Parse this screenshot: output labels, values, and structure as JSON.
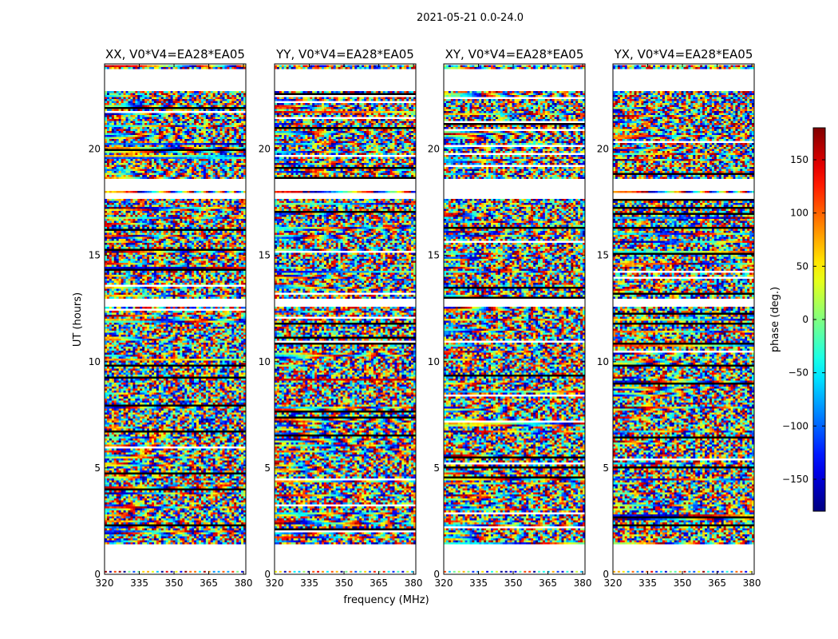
{
  "figure": {
    "suptitle": "2021-05-21 0.0-24.0",
    "xlabel": "frequency (MHz)",
    "ylabel": "UT (hours)"
  },
  "chart_data": {
    "type": "heatmap",
    "title": "2021-05-21 0.0-24.0",
    "xlabel": "frequency (MHz)",
    "ylabel": "UT (hours)",
    "xlim": [
      320,
      381
    ],
    "ylim": [
      0,
      24
    ],
    "x_ticks": [
      320,
      335,
      350,
      365,
      380
    ],
    "y_ticks": [
      0,
      5,
      10,
      15,
      20
    ],
    "panels": [
      {
        "title": "XX, V0*V4=EA28*EA05",
        "correlation": "XX"
      },
      {
        "title": "YY, V0*V4=EA28*EA05",
        "correlation": "YY"
      },
      {
        "title": "XY, V0*V4=EA28*EA05",
        "correlation": "XY"
      },
      {
        "title": "YX, V0*V4=EA28*EA05",
        "correlation": "YX"
      }
    ],
    "colorbar": {
      "label": "phase (deg.)",
      "range": [
        -180,
        180
      ],
      "ticks": [
        -150,
        -100,
        -50,
        0,
        50,
        100,
        150
      ],
      "colormap": "jet"
    },
    "data_gaps_hours": [
      [
        1.4,
        1.5
      ],
      [
        12.45,
        13.0
      ],
      [
        17.5,
        18.6
      ],
      [
        22.7,
        23.8
      ]
    ],
    "blank_hours": [
      [
        0.15,
        1.4
      ],
      [
        12.55,
        12.95
      ],
      [
        17.65,
        17.95
      ],
      [
        18.05,
        18.55
      ],
      [
        22.75,
        23.75
      ]
    ]
  }
}
